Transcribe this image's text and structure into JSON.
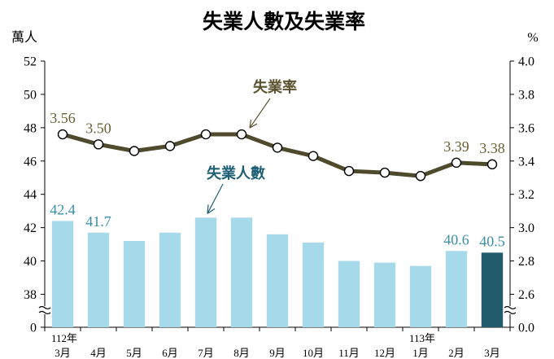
{
  "chart_data": {
    "type": "bar+line",
    "title": "失業人數及失業率",
    "categories": [
      "3月",
      "4月",
      "5月",
      "6月",
      "7月",
      "8月",
      "9月",
      "10月",
      "11月",
      "12月",
      "1月",
      "2月",
      "3月"
    ],
    "year_labels": [
      {
        "index": 0,
        "text": "112年"
      },
      {
        "index": 10,
        "text": "113年"
      }
    ],
    "left_axis": {
      "unit": "萬人",
      "ticks": [
        "0",
        "38",
        "40",
        "42",
        "44",
        "46",
        "48",
        "50",
        "52"
      ],
      "range": [
        36,
        52
      ],
      "break": true
    },
    "right_axis": {
      "unit": "%",
      "ticks": [
        "0.0",
        "2.6",
        "2.8",
        "3.0",
        "3.2",
        "3.4",
        "3.6",
        "3.8",
        "4.0"
      ],
      "range": [
        2.4,
        4.0
      ],
      "break": true
    },
    "series": [
      {
        "name": "失業人數",
        "type": "bar",
        "axis": "left",
        "values": [
          42.4,
          41.7,
          41.2,
          41.7,
          42.6,
          42.6,
          41.6,
          41.1,
          40.0,
          39.9,
          39.7,
          40.6,
          40.5
        ],
        "data_labels": {
          "0": "42.4",
          "1": "41.7",
          "11": "40.6",
          "12": "40.5"
        }
      },
      {
        "name": "失業率",
        "type": "line",
        "axis": "right",
        "values": [
          3.56,
          3.5,
          3.46,
          3.49,
          3.56,
          3.56,
          3.48,
          3.43,
          3.34,
          3.33,
          3.31,
          3.39,
          3.38
        ],
        "data_labels": {
          "0": "3.56",
          "1": "3.50",
          "11": "3.39",
          "12": "3.38"
        }
      }
    ],
    "colors": {
      "bar": "#a6d9ea",
      "bar_highlight": "#225c6c",
      "bar_label": "#3a8ea6",
      "line": "#4f4a2c",
      "line_label": "#6a6035",
      "line_callout": "#5b5230",
      "bar_callout": "#1e5e75"
    }
  }
}
